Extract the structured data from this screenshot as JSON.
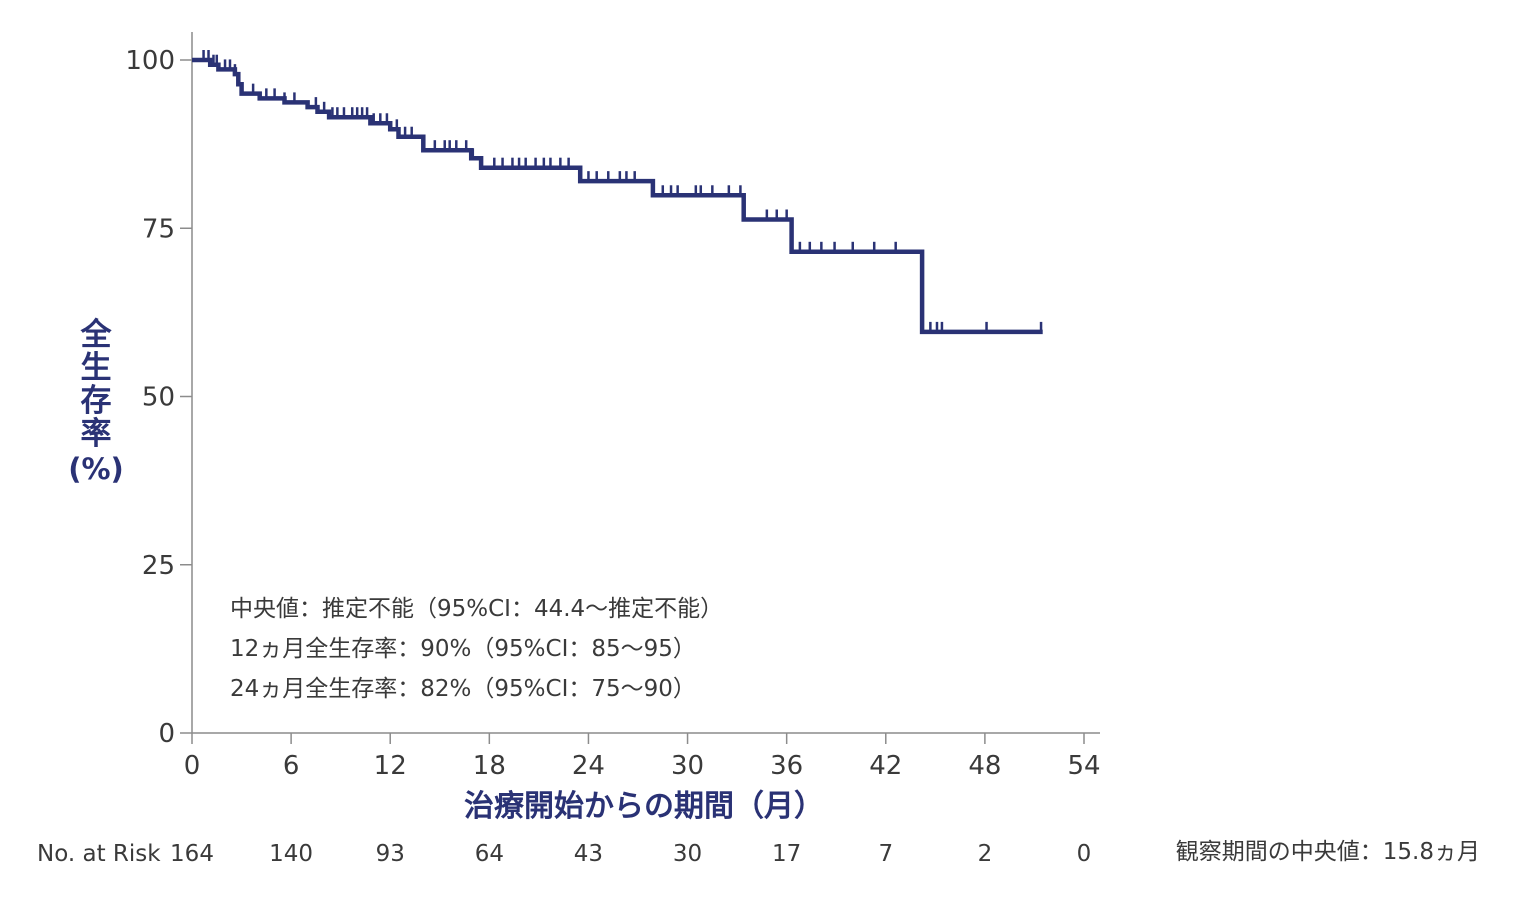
{
  "chart_data": {
    "type": "line",
    "step": true,
    "xlabel": "治療開始からの期間（月）",
    "ylabel_chars": [
      "全",
      "生",
      "存",
      "率"
    ],
    "ylabel_unit": "(%)",
    "xlim": [
      0,
      54
    ],
    "ylim": [
      0,
      100
    ],
    "x_ticks": [
      0,
      6,
      12,
      18,
      24,
      30,
      36,
      42,
      48,
      54
    ],
    "y_ticks": [
      0,
      25,
      50,
      75,
      100
    ],
    "line_color": "#2a3275",
    "series": [
      {
        "values": [
          [
            0,
            100
          ],
          [
            1.1,
            100
          ],
          [
            1.1,
            99.3
          ],
          [
            1.6,
            99.3
          ],
          [
            1.6,
            98.6
          ],
          [
            2.6,
            98.6
          ],
          [
            2.6,
            97.9
          ],
          [
            2.8,
            97.9
          ],
          [
            2.8,
            96.4
          ],
          [
            3.0,
            96.4
          ],
          [
            3.0,
            95.0
          ],
          [
            4.1,
            95.0
          ],
          [
            4.1,
            94.3
          ],
          [
            5.6,
            94.3
          ],
          [
            5.6,
            93.7
          ],
          [
            7.0,
            93.7
          ],
          [
            7.0,
            93.0
          ],
          [
            7.6,
            93.0
          ],
          [
            7.6,
            92.3
          ],
          [
            8.3,
            92.3
          ],
          [
            8.3,
            91.5
          ],
          [
            10.8,
            91.5
          ],
          [
            10.8,
            90.6
          ],
          [
            12.0,
            90.6
          ],
          [
            12.0,
            89.7
          ],
          [
            12.5,
            89.7
          ],
          [
            12.5,
            88.6
          ],
          [
            14.0,
            88.6
          ],
          [
            14.0,
            86.6
          ],
          [
            16.9,
            86.6
          ],
          [
            16.9,
            85.4
          ],
          [
            17.5,
            85.4
          ],
          [
            17.5,
            84.0
          ],
          [
            23.5,
            84.0
          ],
          [
            23.5,
            82.0
          ],
          [
            27.9,
            82.0
          ],
          [
            27.9,
            79.9
          ],
          [
            33.4,
            79.9
          ],
          [
            33.4,
            76.3
          ],
          [
            36.3,
            76.3
          ],
          [
            36.3,
            71.5
          ],
          [
            44.2,
            71.5
          ],
          [
            44.2,
            59.6
          ],
          [
            51.5,
            59.6
          ]
        ],
        "censor": [
          0.7,
          1.0,
          1.3,
          1.5,
          2.0,
          2.3,
          2.6,
          3.7,
          4.5,
          5.0,
          5.6,
          6.2,
          7.5,
          8.0,
          8.5,
          8.8,
          9.2,
          9.7,
          10.0,
          10.3,
          10.6,
          11.0,
          11.4,
          11.8,
          12.4,
          12.9,
          13.3,
          14.0,
          14.7,
          15.3,
          15.6,
          16.0,
          16.6,
          17.0,
          18.3,
          18.8,
          19.4,
          19.8,
          20.2,
          20.8,
          21.3,
          21.7,
          22.3,
          22.8,
          24.0,
          24.5,
          25.2,
          25.9,
          26.3,
          26.8,
          28.5,
          29.0,
          29.4,
          30.5,
          30.8,
          31.5,
          32.5,
          33.2,
          34.8,
          35.4,
          36.0,
          36.8,
          37.4,
          38.1,
          38.9,
          40.0,
          41.3,
          42.6,
          44.7,
          45.1,
          45.4,
          48.1,
          51.4
        ]
      }
    ],
    "annotations": [
      "中央値：推定不能（95%CI：44.4～推定不能）",
      "12ヵ月全生存率：90%（95%CI：85～95）",
      "24ヵ月全生存率：82%（95%CI：75～90）"
    ],
    "risk_table": {
      "label": "No. at Risk",
      "values": [
        "164",
        "140",
        "93",
        "64",
        "43",
        "30",
        "17",
        "7",
        "2",
        "0"
      ]
    },
    "footnote": "観察期間の中央値：15.8ヵ月"
  }
}
